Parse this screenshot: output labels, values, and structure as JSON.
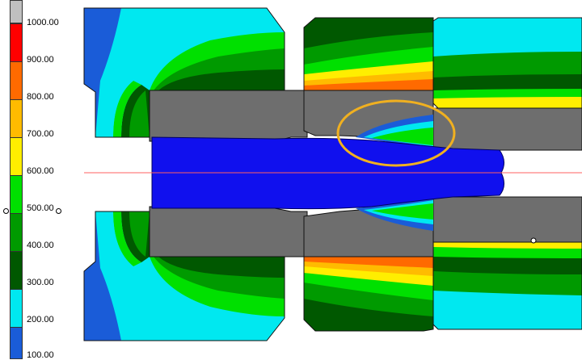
{
  "legend": {
    "ticks": [
      "1000.00",
      "900.00",
      "800.00",
      "700.00",
      "600.00",
      "500.00",
      "400.00",
      "300.00",
      "200.00",
      "100.00"
    ],
    "colors": [
      "#c0c0c0",
      "#ff0000",
      "#ff6a00",
      "#ffbb00",
      "#ffee00",
      "#00e000",
      "#009a00",
      "#005800",
      "#00e8f0",
      "#1a5cd8"
    ]
  },
  "plot": {
    "background": "#ffffff",
    "die_color": "#6e6e6e",
    "billet_color": "#1010ee",
    "highlight_color": "#f0b020",
    "axis_color": "#ff6060"
  }
}
